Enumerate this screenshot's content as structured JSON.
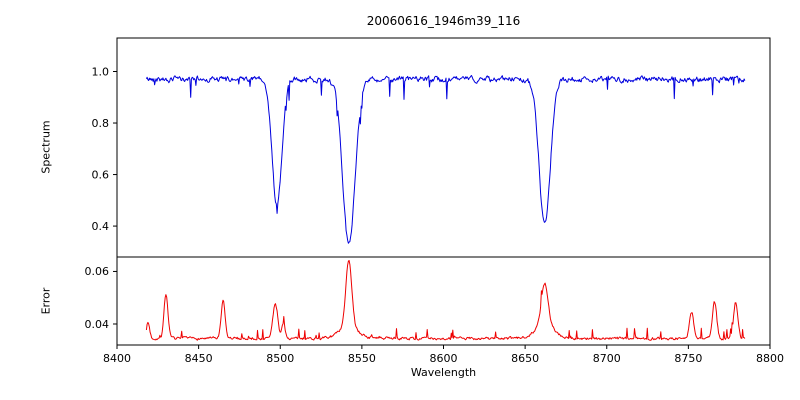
{
  "chart_data": {
    "type": "line",
    "title": "20060616_1946m39_116",
    "xlabel": "Wavelength",
    "x_range": [
      8400,
      8800
    ],
    "x_ticks": [
      8400,
      8450,
      8500,
      8550,
      8600,
      8650,
      8700,
      8750,
      8800
    ],
    "data_x_range": [
      8418,
      8785
    ],
    "grid": false,
    "legend": "none",
    "panels": [
      {
        "name": "spectrum",
        "ylabel": "Spectrum",
        "color": "#0000dd",
        "ylim": [
          0.28,
          1.13
        ],
        "yticks": [
          0.4,
          0.6,
          0.8,
          1.0
        ],
        "ytick_labels": [
          "0.4",
          "0.6",
          "0.8",
          "1.0"
        ],
        "continuum": 0.97,
        "noise_amplitude": 0.04,
        "spike_probability": 0.035,
        "spike_max_depth": 0.09,
        "absorption_lines": [
          {
            "center": 8498,
            "depth": 0.49,
            "width": 3.0
          },
          {
            "center": 8542,
            "depth": 0.64,
            "width": 3.8
          },
          {
            "center": 8662,
            "depth": 0.57,
            "width": 3.4
          }
        ]
      },
      {
        "name": "error",
        "ylabel": "Error",
        "color": "#ee0000",
        "ylim": [
          0.032,
          0.0655
        ],
        "yticks": [
          0.04,
          0.06
        ],
        "ytick_labels": [
          "0.04",
          "0.06"
        ],
        "baseline": 0.0345,
        "noise_amplitude": 0.0018,
        "spike_probability": 0.06,
        "spike_max_height": 0.004,
        "peaks": [
          {
            "center": 8419,
            "height": 0.006,
            "width": 1.0
          },
          {
            "center": 8430,
            "height": 0.017,
            "width": 1.2
          },
          {
            "center": 8465,
            "height": 0.014,
            "width": 1.2
          },
          {
            "center": 8497,
            "height": 0.013,
            "width": 1.5
          },
          {
            "center": 8502,
            "height": 0.006,
            "width": 1.0
          },
          {
            "center": 8542,
            "height": 0.026,
            "width": 1.8
          },
          {
            "center": 8542,
            "height": 0.004,
            "width": 6.0
          },
          {
            "center": 8662,
            "height": 0.016,
            "width": 2.0
          },
          {
            "center": 8662,
            "height": 0.005,
            "width": 6.0
          },
          {
            "center": 8752,
            "height": 0.01,
            "width": 1.3
          },
          {
            "center": 8766,
            "height": 0.014,
            "width": 1.3
          },
          {
            "center": 8779,
            "height": 0.014,
            "width": 1.3
          }
        ]
      }
    ]
  }
}
